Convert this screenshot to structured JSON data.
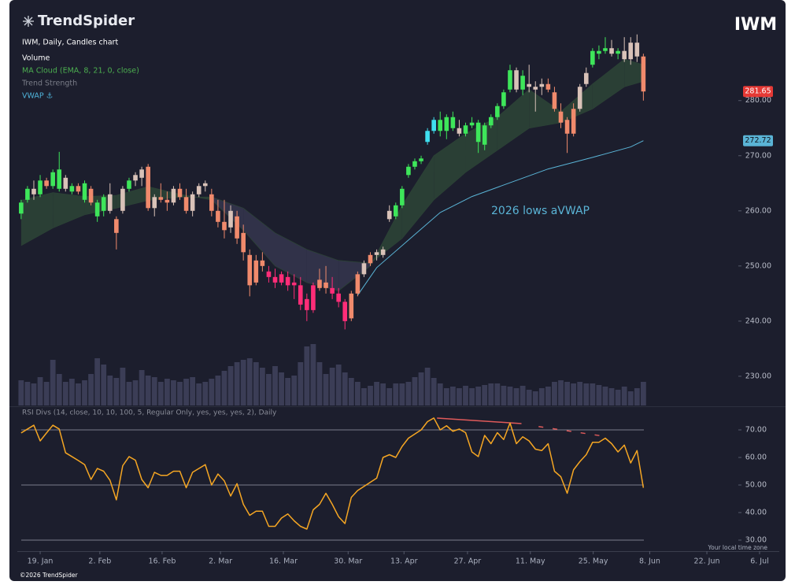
{
  "header": {
    "logo": "TrendSpider",
    "symbol": "IWM",
    "chart_label": "IWM, Daily, Candles chart",
    "legend": [
      "Volume",
      "MA Cloud (EMA, 8, 21, 0, close)",
      "Trend Strength",
      "VWAP ⚓"
    ]
  },
  "chart_data": [
    {
      "type": "candlestick",
      "xlim": [
        -0.6,
        119.4
      ],
      "ylim": [
        224.7,
        296.1
      ],
      "yticks": [
        {
          "value": 230,
          "label": "230.00"
        },
        {
          "value": 240,
          "label": "240.00"
        },
        {
          "value": 250,
          "label": "250.00"
        },
        {
          "value": 260,
          "label": "260.00"
        },
        {
          "value": 270,
          "label": "270.00"
        },
        {
          "value": 280,
          "label": "280.00"
        }
      ],
      "open": [
        259.5,
        262,
        264,
        263,
        265.5,
        264.5,
        264,
        266,
        263.5,
        264.5,
        262,
        264,
        259,
        260,
        263,
        258.5,
        260,
        264,
        265.5,
        266,
        268,
        260.5,
        262.5,
        262,
        261.5,
        264,
        262.5,
        260,
        263,
        264.5,
        263,
        260,
        258,
        257,
        259,
        256,
        252,
        247,
        251,
        249,
        248,
        247,
        248,
        246.5,
        246.5,
        244,
        242,
        246,
        247,
        246,
        245,
        243.5,
        240.5,
        245,
        248.5,
        250.5,
        252,
        253,
        258.5,
        259,
        261,
        266.5,
        268,
        269,
        272.5,
        274.5,
        276.5,
        274.5,
        277,
        275,
        274,
        275.5,
        276,
        272,
        275.5,
        277,
        279,
        282,
        285.5,
        282,
        283,
        282,
        282.5,
        283,
        281.5,
        278,
        276.5,
        274,
        278.5,
        283,
        286.5,
        288.5,
        289,
        289.5,
        288.5,
        289,
        287.5,
        290.5,
        288
      ],
      "high": [
        262,
        264.5,
        265.5,
        266.5,
        266,
        267.5,
        270.7,
        266.5,
        265,
        265,
        265.5,
        264.5,
        262,
        263,
        265,
        259,
        264.5,
        266,
        267,
        268,
        268.5,
        263,
        265,
        263.5,
        264.5,
        265,
        264,
        263.5,
        265,
        265.5,
        264,
        262,
        262,
        261,
        260,
        257.5,
        253,
        252,
        252.5,
        250,
        249.5,
        249,
        249,
        248.5,
        248,
        245,
        247,
        249.5,
        250,
        248,
        246,
        244,
        245.5,
        249,
        251,
        252.5,
        253,
        253.5,
        261,
        261.5,
        264.5,
        268.5,
        269.5,
        270,
        275,
        277,
        278,
        277.5,
        278,
        276.5,
        276,
        277,
        276.5,
        276,
        277.5,
        279.5,
        282,
        286.5,
        286,
        285.5,
        286.5,
        283.5,
        284,
        284,
        282.5,
        279.5,
        277,
        279.5,
        283,
        286,
        289.5,
        290,
        291.5,
        291,
        289.5,
        291.5,
        291.5,
        292,
        288.5
      ],
      "low": [
        258.5,
        261.5,
        262,
        262.5,
        264,
        264,
        263.5,
        263.5,
        263,
        263,
        261.5,
        261,
        258,
        259,
        259.5,
        253,
        259.5,
        263.5,
        264.5,
        264.5,
        260,
        259,
        261.5,
        260,
        261,
        262,
        259.5,
        259,
        262.5,
        263.5,
        259,
        257,
        255,
        256,
        254,
        251,
        244.5,
        246.5,
        249,
        247,
        246,
        246.5,
        245.5,
        244,
        242,
        240,
        241.5,
        245.5,
        245,
        244,
        242.5,
        238.5,
        240,
        244.5,
        248,
        250,
        251,
        251.5,
        258,
        258.5,
        260.5,
        266,
        267.5,
        268.5,
        272,
        274,
        273.5,
        273,
        274.5,
        273.5,
        273.5,
        275,
        270.5,
        271,
        275,
        276.5,
        278.5,
        281.5,
        281.5,
        281,
        281.5,
        278,
        281,
        281.5,
        278,
        275,
        270.5,
        273.5,
        278,
        282.5,
        286,
        287.5,
        288.5,
        288,
        287.5,
        287,
        286.5,
        287,
        280
      ],
      "close": [
        261.5,
        264,
        263,
        265.5,
        264.5,
        267,
        267.5,
        264,
        264.5,
        263.5,
        265,
        261.5,
        261.5,
        262.5,
        260,
        256,
        264,
        265.5,
        266.5,
        267.5,
        260.5,
        262.5,
        262,
        261.5,
        264,
        262.5,
        260,
        263,
        264.5,
        265,
        260,
        258,
        256.5,
        260,
        255,
        252.5,
        246.5,
        251,
        250,
        248,
        247,
        248.5,
        246.5,
        247,
        243,
        242,
        246.5,
        247.5,
        246,
        245,
        243.5,
        240,
        245,
        248.5,
        250.5,
        252,
        252.5,
        252,
        260,
        261,
        264,
        268,
        269,
        269.5,
        274.5,
        276.5,
        274.5,
        277,
        275,
        274,
        275.5,
        276,
        272.5,
        275.5,
        277,
        279,
        281.5,
        285.5,
        282,
        284.5,
        282.5,
        282.5,
        283,
        282,
        278.5,
        276,
        274,
        278.5,
        282.5,
        285,
        289,
        289,
        289.5,
        288.5,
        289,
        287.5,
        290.5,
        288,
        281.65
      ],
      "colors": [
        "#3ee65a",
        "#3ee65a",
        "#d9c2b8",
        "#3ee65a",
        "#f08a6c",
        "#3ee65a",
        "#3ee65a",
        "#d9c2b8",
        "#3ee65a",
        "#f08a6c",
        "#3ee65a",
        "#f08a6c",
        "#3ee65a",
        "#3ee65a",
        "#d9c2b8",
        "#f08a6c",
        "#d9c2b8",
        "#3ee65a",
        "#d9c2b8",
        "#d9c2b8",
        "#f08a6c",
        "#d9c2b8",
        "#f08a6c",
        "#f08a6c",
        "#d9c2b8",
        "#f08a6c",
        "#f08a6c",
        "#d9c2b8",
        "#d9c2b8",
        "#d9c2b8",
        "#f08a6c",
        "#f08a6c",
        "#f08a6c",
        "#d9c2b8",
        "#f08a6c",
        "#f08a6c",
        "#f08a6c",
        "#f08a6c",
        "#f08a6c",
        "#ff2d78",
        "#ff2d78",
        "#ff2d78",
        "#ff2d78",
        "#ff2d78",
        "#ff2d78",
        "#ff2d78",
        "#ff2d78",
        "#f08a6c",
        "#f08a6c",
        "#ff2d78",
        "#ff2d78",
        "#ff2d78",
        "#f08a6c",
        "#f08a6c",
        "#d9c2b8",
        "#f08a6c",
        "#d9c2b8",
        "#d9c2b8",
        "#d9c2b8",
        "#3ee65a",
        "#3ee65a",
        "#3ee65a",
        "#3ee65a",
        "#3ee65a",
        "#3fe0f0",
        "#3fe0f0",
        "#3ee65a",
        "#3ee65a",
        "#3ee65a",
        "#d9c2b8",
        "#3ee65a",
        "#3ee65a",
        "#3ee65a",
        "#3ee65a",
        "#3ee65a",
        "#3ee65a",
        "#3ee65a",
        "#3ee65a",
        "#d9c2b8",
        "#3ee65a",
        "#d9c2b8",
        "#d9c2b8",
        "#d9c2b8",
        "#f08a6c",
        "#f08a6c",
        "#f08a6c",
        "#f08a6c",
        "#f08a6c",
        "#d9c2b8",
        "#d9c2b8",
        "#3ee65a",
        "#3ee65a",
        "#3ee65a",
        "#d9c2b8",
        "#3ee65a",
        "#d9c2b8",
        "#d9c2b8",
        "#d9c2b8",
        "#f08a6c"
      ],
      "volume": [
        32,
        30,
        28,
        36,
        30,
        58,
        40,
        30,
        34,
        28,
        32,
        40,
        60,
        52,
        38,
        35,
        48,
        30,
        32,
        45,
        38,
        36,
        30,
        34,
        32,
        30,
        34,
        36,
        28,
        30,
        34,
        38,
        44,
        50,
        55,
        58,
        60,
        55,
        48,
        40,
        50,
        42,
        35,
        38,
        55,
        75,
        78,
        55,
        40,
        48,
        52,
        42,
        35,
        30,
        22,
        25,
        30,
        28,
        22,
        28,
        28,
        30,
        36,
        42,
        48,
        35,
        28,
        22,
        24,
        22,
        25,
        22,
        24,
        26,
        28,
        28,
        25,
        24,
        22,
        25,
        20,
        18,
        22,
        24,
        30,
        32,
        30,
        28,
        30,
        28,
        28,
        26,
        24,
        22,
        20,
        24,
        18,
        22,
        30
      ],
      "volume_color": "#3b3d56",
      "ma_cloud": {
        "x": [
          0,
          5,
          10,
          15,
          20,
          25,
          30,
          35,
          40,
          45,
          50,
          55,
          60,
          65,
          70,
          75,
          80,
          85,
          90,
          95,
          98
        ],
        "ema_fast": [
          261.9,
          263.3,
          262.6,
          262.8,
          264.4,
          263,
          262,
          256.5,
          250,
          247,
          245.5,
          250,
          261,
          270,
          274,
          277,
          282,
          278,
          283,
          287.5,
          286.5
        ],
        "ema_slow": [
          253.7,
          256.9,
          259.3,
          260.5,
          261.9,
          262.5,
          262.5,
          260.5,
          256,
          253,
          251,
          250.5,
          255,
          262,
          267,
          271,
          275,
          276,
          278.5,
          282.5,
          283.5
        ],
        "up_color": "#2c4236",
        "down_color": "#34344c"
      },
      "vwap": {
        "x": [
          53,
          56,
          61,
          66,
          71,
          77,
          83,
          90,
          96,
          98
        ],
        "values": [
          244.7,
          249.7,
          254.7,
          259.7,
          262.6,
          265.1,
          267.6,
          269.7,
          271.6,
          272.72
        ],
        "color": "#5ab4d6",
        "annotation": "2026 lows aVWAP"
      },
      "last_price_color": "#e53935"
    },
    {
      "type": "line",
      "title": "RSI Divs (14, close, 10, 10, 100, 5, Regular Only, yes, yes, yes, 2), Daily",
      "xlim": [
        -0.6,
        119.4
      ],
      "ylim": [
        26,
        78
      ],
      "yticks": [
        {
          "value": 30,
          "label": "30.00"
        },
        {
          "value": 40,
          "label": "40.00"
        },
        {
          "value": 50,
          "label": "50.00"
        },
        {
          "value": 60,
          "label": "60.00"
        },
        {
          "value": 70,
          "label": "70.00"
        }
      ],
      "xticks": [
        {
          "value": 3,
          "label": "19. Jan"
        },
        {
          "value": 12.4,
          "label": "2. Feb"
        },
        {
          "value": 22.2,
          "label": "16. Feb"
        },
        {
          "value": 31.4,
          "label": "2. Mar"
        },
        {
          "value": 41.3,
          "label": "16. Mar"
        },
        {
          "value": 51.5,
          "label": "30. Mar"
        },
        {
          "value": 60.3,
          "label": "13. Apr"
        },
        {
          "value": 70.3,
          "label": "27. Apr"
        },
        {
          "value": 80.2,
          "label": "11. May"
        },
        {
          "value": 90.1,
          "label": "25. May"
        },
        {
          "value": 99,
          "label": "8. Jun"
        },
        {
          "value": 108,
          "label": "22. Jun"
        },
        {
          "value": 116.3,
          "label": "6. Jul"
        }
      ],
      "values": [
        68.9,
        70.3,
        71.7,
        66,
        68.9,
        71.7,
        70.3,
        61.7,
        60.3,
        58.9,
        57.4,
        52,
        56,
        55,
        51.7,
        44.6,
        57,
        60.3,
        59,
        52,
        49,
        54.6,
        53.5,
        53.5,
        55,
        55,
        49,
        54.6,
        56,
        57.4,
        50,
        54,
        51.5,
        46,
        50.5,
        43,
        39,
        40.5,
        40.5,
        35,
        35,
        38,
        39.5,
        37,
        35,
        34,
        41,
        43,
        47,
        43,
        38.5,
        36,
        45.5,
        48,
        49.5,
        51,
        52.5,
        60,
        61,
        60,
        64,
        67,
        68.5,
        70,
        73,
        74.3,
        70,
        71.5,
        69.5,
        70.3,
        69,
        62,
        60.3,
        68,
        65,
        69,
        66.5,
        72.5,
        65,
        67.5,
        66,
        63,
        62.5,
        65,
        55,
        53,
        47,
        55.5,
        58.5,
        61,
        65.5,
        65.5,
        67,
        65,
        62,
        64.5,
        58,
        62.5,
        49
      ],
      "color": "#f5a623",
      "reference_lines": [
        70,
        50,
        30
      ],
      "divergences": [
        {
          "x": [
            65.5,
            78.8
          ],
          "y": [
            74.3,
            72.3
          ],
          "dashed": false
        },
        {
          "x": [
            81.5,
            91.5
          ],
          "y": [
            71.2,
            67.8
          ],
          "dashed": true
        }
      ],
      "divergence_color": "#e05a5a"
    }
  ],
  "footer": {
    "timezone": "Your local time zone",
    "copyright": "©2026 TrendSpider"
  }
}
